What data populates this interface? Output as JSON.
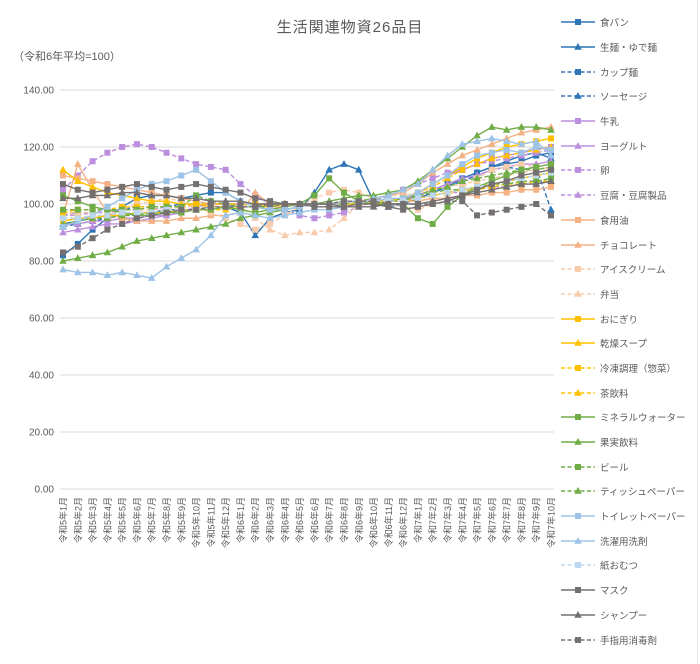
{
  "title": "生活関連物資26品目",
  "subtitle": "（令和6年平均=100）",
  "chart_data": {
    "type": "line",
    "title": "生活関連物資26品目",
    "subtitle": "（令和6年平均=100）",
    "xlabel": "",
    "ylabel": "",
    "ylim": [
      0,
      140
    ],
    "yticks": [
      0,
      20,
      40,
      60,
      80,
      100,
      120,
      140
    ],
    "ytick_labels": [
      "0.00",
      "20.00",
      "40.00",
      "60.00",
      "80.00",
      "100.00",
      "120.00",
      "140.00"
    ],
    "grid": true,
    "grid_color": "#d9d9d9",
    "text_color": "#595959",
    "legend_position": "right",
    "x": [
      "令和5年1月",
      "令和5年2月",
      "令和5年3月",
      "令和5年4月",
      "令和5年5月",
      "令和5年6月",
      "令和5年7月",
      "令和5年8月",
      "令和5年9月",
      "令和5年10月",
      "令和5年11月",
      "令和5年12月",
      "令和6年1月",
      "令和6年2月",
      "令和6年3月",
      "令和6年4月",
      "令和6年5月",
      "令和6年6月",
      "令和6年7月",
      "令和6年8月",
      "令和6年9月",
      "令和6年10月",
      "令和6年11月",
      "令和6年12月",
      "令和7年1月",
      "令和7年2月",
      "令和7年3月",
      "令和7年4月",
      "令和7年5月",
      "令和7年6月",
      "令和7年7月",
      "令和7年8月",
      "令和7年9月",
      "令和7年10月"
    ],
    "series": [
      {
        "name": "食パン",
        "color": "#2e75b6",
        "dash": "solid",
        "marker": "square",
        "values": [
          82,
          86,
          91,
          95,
          99,
          102,
          103,
          103,
          102,
          103,
          104,
          104,
          101,
          99,
          98,
          98,
          99,
          100,
          100,
          101,
          101,
          100,
          101,
          102,
          103,
          105,
          107,
          109,
          111,
          113,
          114,
          115,
          117,
          118
        ]
      },
      {
        "name": "生麺・ゆで麺",
        "color": "#2e75b6",
        "dash": "solid",
        "marker": "triangle",
        "values": [
          93,
          94,
          95,
          96,
          96,
          97,
          97,
          98,
          98,
          98,
          99,
          99,
          97,
          89,
          95,
          97,
          98,
          104,
          112,
          114,
          112,
          101,
          99,
          100,
          102,
          104,
          106,
          109,
          111,
          113,
          115,
          117,
          118,
          116
        ]
      },
      {
        "name": "カップ麺",
        "color": "#2e75b6",
        "dash": "dash",
        "marker": "square",
        "values": [
          96,
          97,
          97,
          98,
          98,
          99,
          99,
          99,
          100,
          100,
          100,
          100,
          99,
          99,
          99,
          100,
          100,
          100,
          100,
          101,
          101,
          101,
          101,
          101,
          102,
          103,
          104,
          105,
          106,
          107,
          108,
          109,
          110,
          111
        ]
      },
      {
        "name": "ソーセージ",
        "color": "#2e75b6",
        "dash": "dash",
        "marker": "triangle",
        "values": [
          92,
          93,
          94,
          95,
          96,
          96,
          97,
          97,
          98,
          98,
          99,
          99,
          99,
          99,
          100,
          100,
          100,
          100,
          100,
          101,
          101,
          101,
          100,
          100,
          102,
          104,
          106,
          108,
          110,
          112,
          113,
          112,
          113,
          98
        ]
      },
      {
        "name": "牛乳",
        "color": "#bc8fde",
        "dash": "solid",
        "marker": "square",
        "values": [
          93,
          93,
          94,
          94,
          95,
          95,
          96,
          96,
          97,
          99,
          100,
          100,
          100,
          100,
          100,
          100,
          99,
          100,
          100,
          100,
          100,
          101,
          101,
          101,
          104,
          107,
          110,
          112,
          114,
          116,
          117,
          118,
          119,
          120
        ]
      },
      {
        "name": "ヨーグルト",
        "color": "#bc8fde",
        "dash": "solid",
        "marker": "triangle",
        "values": [
          90,
          91,
          92,
          93,
          93,
          94,
          95,
          96,
          97,
          99,
          100,
          100,
          100,
          100,
          99,
          100,
          100,
          100,
          100,
          100,
          101,
          101,
          101,
          101,
          103,
          105,
          107,
          109,
          110,
          112,
          113,
          114,
          114,
          115
        ]
      },
      {
        "name": "卵",
        "color": "#bc8fde",
        "dash": "dash",
        "marker": "square",
        "values": [
          105,
          110,
          115,
          118,
          120,
          121,
          120,
          118,
          116,
          114,
          113,
          112,
          107,
          103,
          100,
          98,
          96,
          95,
          96,
          97,
          99,
          101,
          103,
          105,
          107,
          109,
          111,
          112,
          114,
          115,
          116,
          117,
          118,
          119
        ]
      },
      {
        "name": "豆腐・豆腐製品",
        "color": "#bc8fde",
        "dash": "dash",
        "marker": "triangle",
        "values": [
          96,
          96,
          97,
          97,
          98,
          98,
          98,
          99,
          99,
          99,
          100,
          100,
          100,
          100,
          100,
          100,
          100,
          100,
          100,
          100,
          100,
          101,
          101,
          101,
          102,
          103,
          104,
          104,
          105,
          106,
          106,
          107,
          107,
          108
        ]
      },
      {
        "name": "食用油",
        "color": "#f4b183",
        "dash": "solid",
        "marker": "square",
        "values": [
          110,
          109,
          108,
          107,
          106,
          105,
          104,
          103,
          102,
          101,
          100,
          100,
          100,
          100,
          99,
          99,
          100,
          100,
          100,
          100,
          100,
          101,
          101,
          101,
          101,
          102,
          102,
          103,
          103,
          104,
          104,
          105,
          105,
          106
        ]
      },
      {
        "name": "チョコレート",
        "color": "#f4b183",
        "dash": "solid",
        "marker": "triangle",
        "values": [
          96,
          114,
          105,
          97,
          95,
          94,
          94,
          94,
          95,
          95,
          96,
          96,
          97,
          104,
          100,
          98,
          99,
          100,
          100,
          100,
          101,
          102,
          103,
          104,
          107,
          111,
          114,
          117,
          119,
          121,
          123,
          125,
          126,
          127
        ]
      },
      {
        "name": "アイスクリーム",
        "color": "#f8cbad",
        "dash": "dash",
        "marker": "square",
        "values": [
          97,
          96,
          95,
          96,
          98,
          100,
          101,
          102,
          101,
          99,
          97,
          95,
          93,
          91,
          93,
          96,
          99,
          102,
          104,
          105,
          104,
          102,
          100,
          99,
          98,
          100,
          103,
          106,
          109,
          112,
          113,
          114,
          113,
          112
        ]
      },
      {
        "name": "弁当",
        "color": "#f8cbad",
        "dash": "dash",
        "marker": "triangle",
        "values": [
          97,
          97,
          97,
          98,
          98,
          98,
          98,
          98,
          99,
          99,
          99,
          99,
          99,
          95,
          91,
          89,
          90,
          90,
          91,
          95,
          100,
          102,
          103,
          103,
          104,
          105,
          106,
          107,
          108,
          109,
          110,
          111,
          112,
          113
        ]
      },
      {
        "name": "おにぎり",
        "color": "#ffc000",
        "dash": "solid",
        "marker": "square",
        "values": [
          94,
          95,
          95,
          96,
          96,
          97,
          97,
          97,
          98,
          98,
          98,
          99,
          99,
          99,
          99,
          100,
          100,
          100,
          100,
          101,
          101,
          101,
          101,
          102,
          104,
          107,
          110,
          113,
          116,
          118,
          120,
          121,
          122,
          123
        ]
      },
      {
        "name": "乾燥スープ",
        "color": "#ffc000",
        "dash": "solid",
        "marker": "triangle",
        "values": [
          112,
          108,
          106,
          104,
          103,
          102,
          101,
          101,
          100,
          100,
          99,
          99,
          99,
          99,
          100,
          100,
          100,
          100,
          100,
          100,
          100,
          101,
          101,
          101,
          102,
          103,
          104,
          105,
          106,
          107,
          108,
          109,
          110,
          111
        ]
      },
      {
        "name": "冷凍調理（惣菜）",
        "color": "#ffc000",
        "dash": "dash",
        "marker": "square",
        "values": [
          97,
          98,
          98,
          98,
          99,
          99,
          99,
          99,
          99,
          100,
          100,
          100,
          100,
          100,
          100,
          100,
          100,
          100,
          100,
          100,
          100,
          100,
          101,
          101,
          102,
          103,
          104,
          105,
          105,
          106,
          107,
          107,
          108,
          108
        ]
      },
      {
        "name": "茶飲料",
        "color": "#ffc000",
        "dash": "dash",
        "marker": "triangle",
        "values": [
          95,
          95,
          96,
          96,
          96,
          97,
          97,
          97,
          98,
          98,
          98,
          98,
          99,
          99,
          99,
          100,
          100,
          100,
          100,
          100,
          101,
          101,
          101,
          102,
          104,
          106,
          109,
          112,
          114,
          116,
          117,
          118,
          119,
          120
        ]
      },
      {
        "name": "ミネラルウォーター",
        "color": "#70ad47",
        "dash": "solid",
        "marker": "square",
        "values": [
          103,
          101,
          99,
          98,
          97,
          96,
          96,
          97,
          97,
          98,
          98,
          99,
          98,
          97,
          98,
          99,
          100,
          103,
          109,
          104,
          101,
          100,
          100,
          100,
          95,
          93,
          99,
          103,
          106,
          108,
          110,
          112,
          113,
          114
        ]
      },
      {
        "name": "果実飲料",
        "color": "#70ad47",
        "dash": "solid",
        "marker": "triangle",
        "values": [
          80,
          81,
          82,
          83,
          85,
          87,
          88,
          89,
          90,
          91,
          92,
          93,
          95,
          96,
          97,
          98,
          99,
          100,
          101,
          102,
          103,
          103,
          104,
          105,
          108,
          112,
          116,
          120,
          124,
          127,
          126,
          127,
          127,
          126
        ]
      },
      {
        "name": "ビール",
        "color": "#70ad47",
        "dash": "dash",
        "marker": "square",
        "values": [
          98,
          98,
          98,
          98,
          98,
          98,
          99,
          99,
          99,
          103,
          101,
          100,
          99,
          99,
          99,
          100,
          100,
          100,
          100,
          100,
          101,
          102,
          101,
          101,
          103,
          104,
          105,
          105,
          106,
          107,
          107,
          108,
          108,
          109
        ]
      },
      {
        "name": "ティッシュペーパー",
        "color": "#70ad47",
        "dash": "dash",
        "marker": "triangle",
        "values": [
          93,
          94,
          95,
          95,
          96,
          96,
          97,
          97,
          98,
          98,
          99,
          99,
          99,
          99,
          100,
          100,
          100,
          100,
          100,
          100,
          101,
          101,
          101,
          102,
          103,
          105,
          106,
          108,
          109,
          110,
          111,
          112,
          112,
          113
        ]
      },
      {
        "name": "トイレットペーパー",
        "color": "#9dc3e6",
        "dash": "solid",
        "marker": "square",
        "values": [
          92,
          94,
          96,
          99,
          102,
          105,
          107,
          108,
          110,
          112,
          108,
          104,
          101,
          99,
          98,
          98,
          99,
          100,
          100,
          101,
          101,
          101,
          102,
          102,
          104,
          107,
          110,
          114,
          117,
          118,
          119,
          118,
          120,
          119
        ]
      },
      {
        "name": "洗濯用洗剤",
        "color": "#9dc3e6",
        "dash": "solid",
        "marker": "triangle",
        "values": [
          77,
          76,
          76,
          75,
          76,
          75,
          74,
          78,
          81,
          84,
          89,
          96,
          97,
          96,
          95,
          96,
          97,
          98,
          98,
          99,
          100,
          102,
          103,
          105,
          107,
          112,
          117,
          121,
          122,
          123,
          122,
          121,
          122,
          117
        ]
      },
      {
        "name": "紙おむつ",
        "color": "#bdd7ee",
        "dash": "dash",
        "marker": "square",
        "values": [
          95,
          95,
          96,
          96,
          97,
          97,
          97,
          98,
          98,
          98,
          99,
          99,
          99,
          99,
          100,
          100,
          100,
          100,
          100,
          100,
          101,
          101,
          101,
          101,
          102,
          103,
          104,
          105,
          106,
          107,
          108,
          109,
          110,
          111
        ]
      },
      {
        "name": "マスク",
        "color": "#757070",
        "dash": "solid",
        "marker": "square",
        "values": [
          107,
          105,
          104,
          105,
          106,
          107,
          106,
          105,
          106,
          107,
          106,
          105,
          104,
          102,
          101,
          100,
          100,
          99,
          99,
          99,
          100,
          100,
          99,
          98,
          99,
          100,
          101,
          103,
          105,
          107,
          108,
          110,
          111,
          112
        ]
      },
      {
        "name": "シャンプー",
        "color": "#757070",
        "dash": "solid",
        "marker": "triangle",
        "values": [
          102,
          102,
          103,
          103,
          104,
          104,
          103,
          103,
          102,
          102,
          101,
          101,
          101,
          100,
          100,
          100,
          100,
          100,
          100,
          99,
          99,
          99,
          100,
          100,
          100,
          101,
          102,
          103,
          104,
          105,
          106,
          107,
          107,
          108
        ]
      },
      {
        "name": "手指用消毒剤",
        "color": "#757070",
        "dash": "dash",
        "marker": "square",
        "values": [
          83,
          85,
          88,
          91,
          93,
          95,
          96,
          97,
          98,
          98,
          99,
          99,
          99,
          99,
          100,
          100,
          100,
          100,
          100,
          101,
          101,
          101,
          100,
          100,
          100,
          100,
          101,
          101,
          96,
          97,
          98,
          99,
          100,
          96
        ]
      }
    ]
  }
}
